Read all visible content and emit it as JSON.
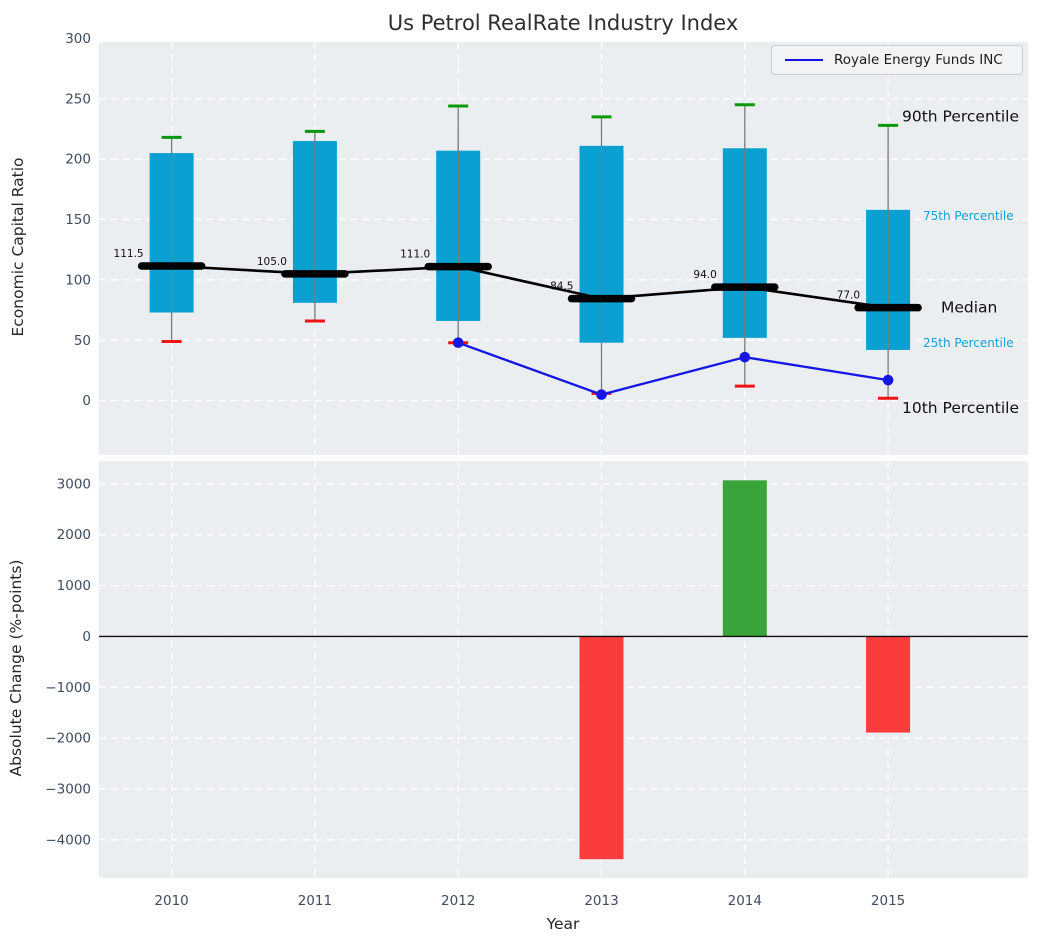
{
  "page": {
    "title": "Us Petrol RealRate Industry Index"
  },
  "axes": {
    "top": {
      "ylabel": "Economic Capital Ratio"
    },
    "bottom": {
      "ylabel": "Absolute Change (%-points)",
      "xlabel": "Year"
    }
  },
  "legend": {
    "label": "Royale Energy Funds INC"
  },
  "colors": {
    "panel_bg": "#eaeef1",
    "grid": "#ffffff",
    "tick_text": "#3e4d61",
    "box_fill": "#0aa0d2",
    "whisker": "#7b7b7b",
    "cap_top": "#0a970a",
    "cap_bottom": "#ee1212",
    "median": "#000000",
    "company_line": "#1515e6",
    "bar_positive": "#3aa33a",
    "bar_negative": "#fa3c3c",
    "zero_line": "#111111",
    "percentile_small_label": "#18a0d8"
  },
  "chart_data": [
    {
      "type": "box-percentile",
      "title": "Us Petrol RealRate Industry Index",
      "ylabel": "Economic Capital Ratio",
      "categories": [
        "2010",
        "2011",
        "2012",
        "2013",
        "2014",
        "2015"
      ],
      "ylim": [
        -45,
        297
      ],
      "grid": true,
      "legend_position": "upper right",
      "yticks": [
        {
          "label": "300",
          "value": 300
        },
        {
          "label": "250",
          "value": 250
        },
        {
          "label": "200",
          "value": 200
        },
        {
          "label": "150",
          "value": 150
        },
        {
          "label": "100",
          "value": 100
        },
        {
          "label": "50",
          "value": 50
        },
        {
          "label": "0",
          "value": 0
        }
      ],
      "series": [
        {
          "name": "90th Percentile",
          "values": [
            218,
            223,
            244,
            235,
            245,
            228
          ]
        },
        {
          "name": "75th Percentile",
          "values": [
            205,
            215,
            207,
            211,
            209,
            158
          ]
        },
        {
          "name": "Median",
          "values": [
            111.5,
            105,
            111,
            84.5,
            94,
            77
          ]
        },
        {
          "name": "25th Percentile",
          "values": [
            73,
            81,
            66,
            48,
            52,
            42
          ]
        },
        {
          "name": "10th Percentile",
          "values": [
            49,
            66,
            48,
            6,
            12,
            2
          ]
        }
      ],
      "median_labels": [
        "111.5",
        "105.0",
        "111.0",
        "84.5",
        "94.0",
        "77.0"
      ],
      "overlay_line": {
        "name": "Royale Energy Funds INC",
        "x": [
          "2012",
          "2013",
          "2014",
          "2015"
        ],
        "values": [
          48,
          5,
          36,
          17
        ]
      },
      "right_annotations": [
        {
          "text": "90th Percentile",
          "size": "large",
          "anchor_series": 0
        },
        {
          "text": "75th Percentile",
          "size": "small",
          "anchor_series": 1
        },
        {
          "text": "Median",
          "size": "large",
          "anchor_series": 2
        },
        {
          "text": "25th Percentile",
          "size": "small",
          "anchor_series": 3
        },
        {
          "text": "10th Percentile",
          "size": "large",
          "anchor_series": 4
        }
      ]
    },
    {
      "type": "bar",
      "ylabel": "Absolute Change (%-points)",
      "xlabel": "Year",
      "categories": [
        "2010",
        "2011",
        "2012",
        "2013",
        "2014",
        "2015"
      ],
      "values": [
        null,
        null,
        null,
        -4380,
        3070,
        -1890
      ],
      "ylim": [
        -4750,
        3450
      ],
      "grid": true,
      "zero_line": true,
      "yticks": [
        {
          "label": "3000",
          "value": 3000
        },
        {
          "label": "2000",
          "value": 2000
        },
        {
          "label": "1000",
          "value": 1000
        },
        {
          "label": "0",
          "value": 0
        },
        {
          "label": "−1000",
          "value": -1000
        },
        {
          "label": "−2000",
          "value": -2000
        },
        {
          "label": "−3000",
          "value": -3000
        },
        {
          "label": "−4000",
          "value": -4000
        }
      ]
    }
  ]
}
